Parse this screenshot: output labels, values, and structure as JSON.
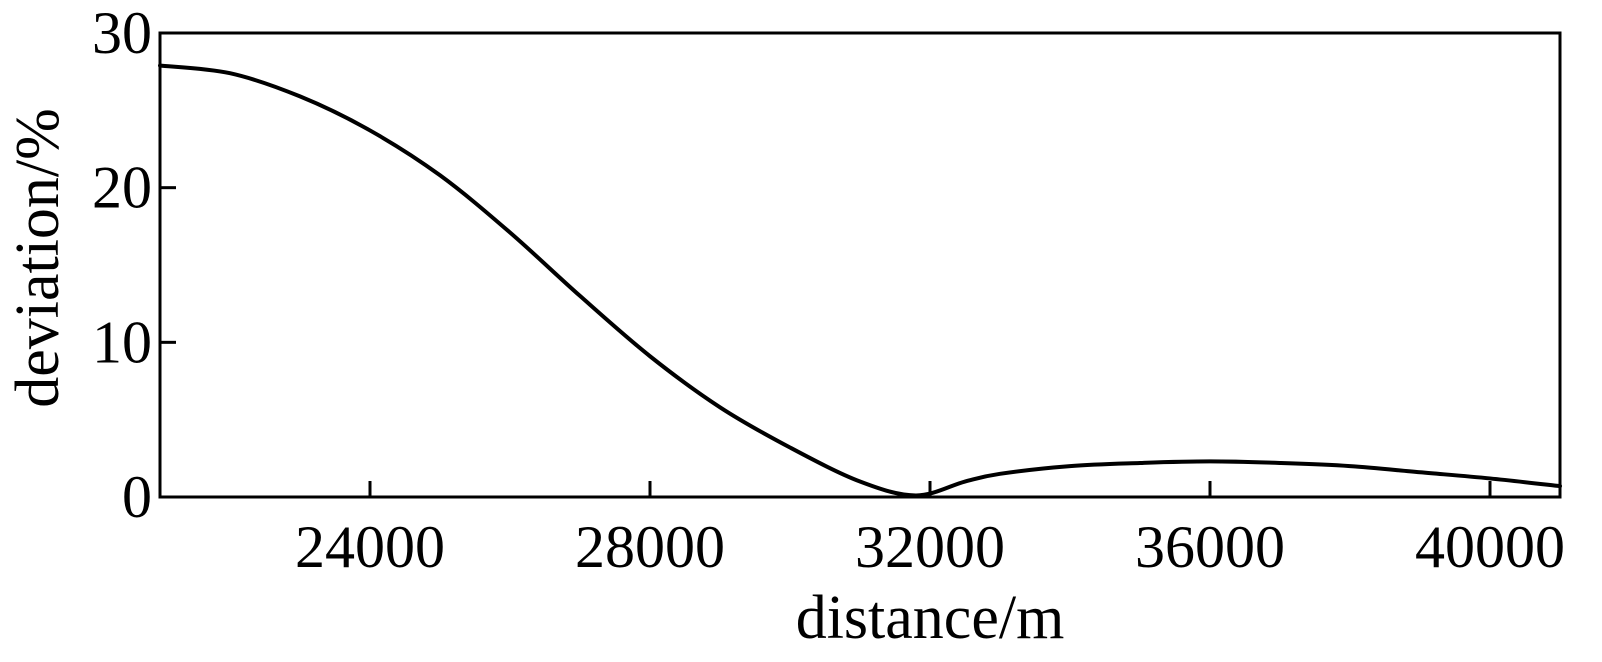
{
  "chart_data": {
    "type": "line",
    "title": "",
    "xlabel": "distance/m",
    "ylabel": "deviation/%",
    "xlim": [
      21000,
      41000
    ],
    "ylim": [
      0,
      30
    ],
    "grid": false,
    "x_ticks": [
      {
        "value": 24000,
        "label": "24000"
      },
      {
        "value": 28000,
        "label": "28000"
      },
      {
        "value": 32000,
        "label": "32000"
      },
      {
        "value": 36000,
        "label": "36000"
      },
      {
        "value": 40000,
        "label": "40000"
      }
    ],
    "y_ticks": [
      {
        "value": 0,
        "label": "0"
      },
      {
        "value": 10,
        "label": "10"
      },
      {
        "value": 20,
        "label": "20"
      },
      {
        "value": 30,
        "label": "30"
      }
    ],
    "series": [
      {
        "color": "#000000",
        "x": [
          21000,
          22000,
          23000,
          24000,
          25000,
          26000,
          27000,
          28000,
          29000,
          30000,
          31000,
          31800,
          32500,
          33000,
          34000,
          35000,
          36000,
          37000,
          38000,
          39000,
          40000,
          41000
        ],
        "y": [
          27.9,
          27.4,
          25.9,
          23.7,
          20.8,
          17.1,
          13.0,
          9.1,
          5.8,
          3.2,
          1.0,
          0.1,
          1.0,
          1.5,
          2.0,
          2.2,
          2.3,
          2.2,
          2.0,
          1.6,
          1.2,
          0.7
        ]
      }
    ]
  }
}
